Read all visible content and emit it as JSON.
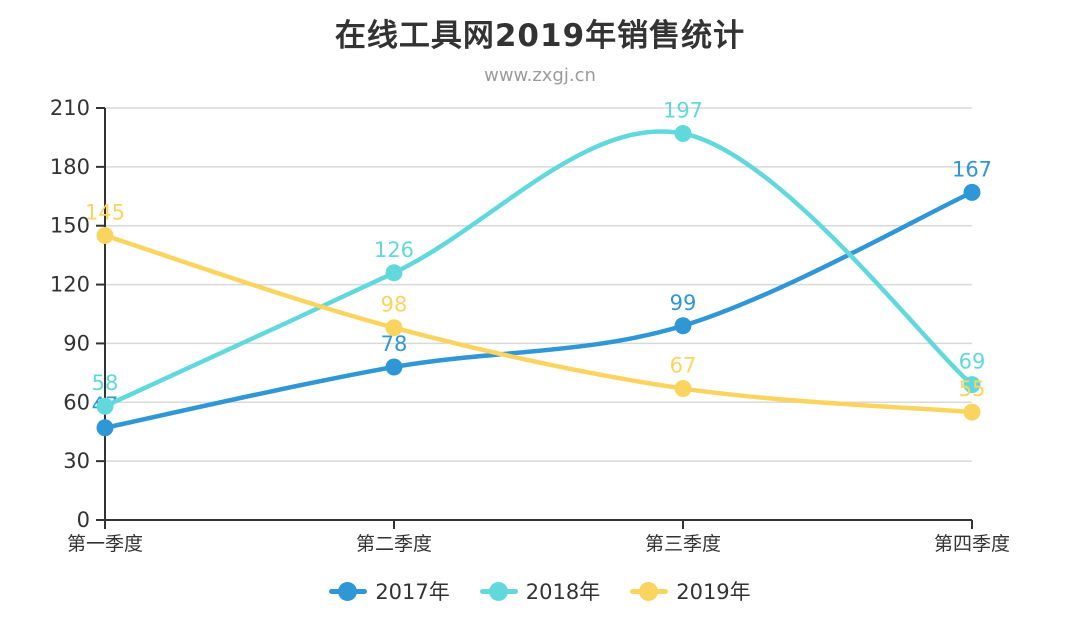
{
  "header": {
    "title": "在线工具网2019年销售统计",
    "subtitle": "www.zxgj.cn",
    "title_color": "#333333",
    "subtitle_color": "#9b9b9b"
  },
  "chart_data": {
    "type": "line",
    "smooth": true,
    "title": "在线工具网2019年销售统计",
    "subtitle": "www.zxgj.cn",
    "categories": [
      "第一季度",
      "第二季度",
      "第三季度",
      "第四季度"
    ],
    "series": [
      {
        "name": "2017年",
        "color": "#2F97D6",
        "values": [
          47,
          78,
          99,
          167
        ]
      },
      {
        "name": "2018年",
        "color": "#61D9DC",
        "values": [
          58,
          126,
          197,
          69
        ]
      },
      {
        "name": "2019年",
        "color": "#FBD460",
        "values": [
          145,
          98,
          67,
          55
        ]
      }
    ],
    "xlabel": "",
    "ylabel": "",
    "ylim": [
      0,
      210
    ],
    "y_ticks": [
      0,
      30,
      60,
      90,
      120,
      150,
      180,
      210
    ],
    "grid": true,
    "legend_position": "bottom",
    "colors": {
      "axis": "#333333",
      "gridline": "#d9d9d9",
      "tick_label": "#333333"
    }
  }
}
